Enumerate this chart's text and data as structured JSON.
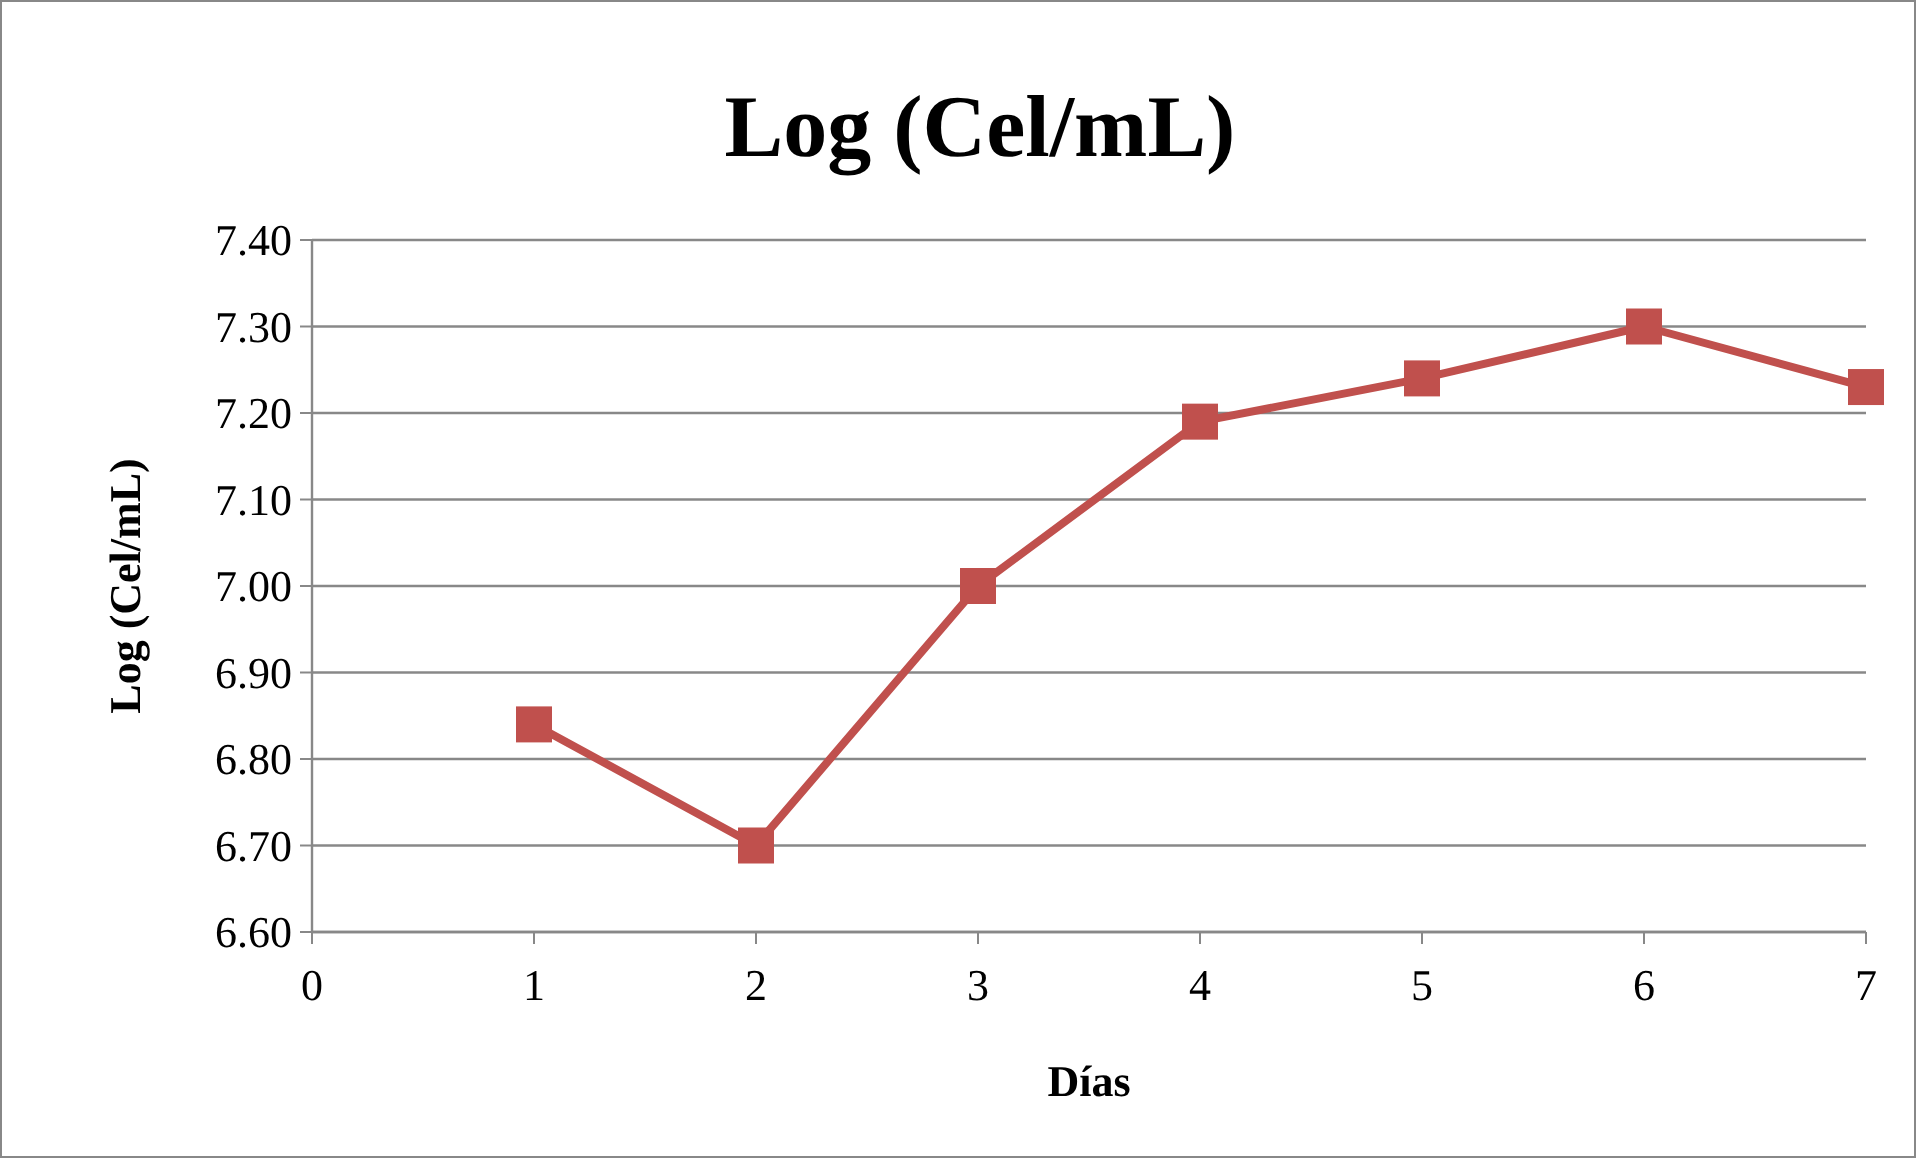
{
  "chart_data": {
    "type": "line",
    "title": "Log (Cel/mL)",
    "xlabel": "Días",
    "ylabel": "Log (Cel/mL)",
    "x": [
      1,
      2,
      3,
      4,
      5,
      6,
      7
    ],
    "series": [
      {
        "color": "#c0504d",
        "values": [
          6.84,
          6.7,
          7.0,
          7.19,
          7.24,
          7.3,
          7.23
        ]
      }
    ],
    "xlim": [
      0,
      7
    ],
    "xticks": [
      0,
      1,
      2,
      3,
      4,
      5,
      6,
      7
    ],
    "ylim": [
      6.6,
      7.4
    ],
    "yticks": [
      {
        "value": 6.6,
        "label": "6.60"
      },
      {
        "value": 6.7,
        "label": "6.70"
      },
      {
        "value": 6.8,
        "label": "6.80"
      },
      {
        "value": 6.9,
        "label": "6.90"
      },
      {
        "value": 7.0,
        "label": "7.00"
      },
      {
        "value": 7.1,
        "label": "7.10"
      },
      {
        "value": 7.2,
        "label": "7.20"
      },
      {
        "value": 7.3,
        "label": "7.30"
      },
      {
        "value": 7.4,
        "label": "7.40"
      }
    ],
    "grid": "y",
    "marker": "square",
    "line_style": "solid"
  }
}
